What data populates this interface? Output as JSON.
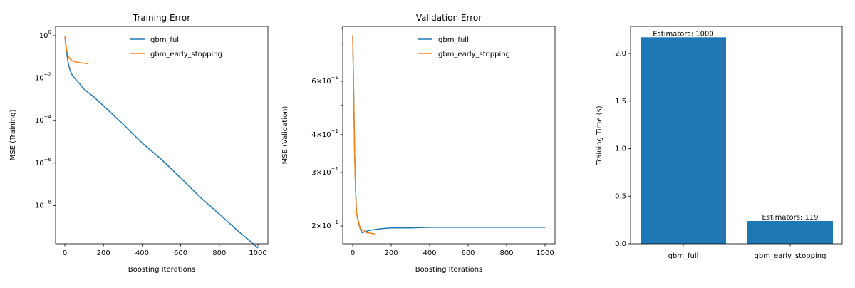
{
  "colors": {
    "blue": "#1f77b4",
    "orange": "#ff7f0e",
    "axis": "#000000",
    "legend_border": "#cccccc"
  },
  "chart_data": [
    {
      "type": "line",
      "title": "Training Error",
      "xlabel": "Boosting Iterations",
      "ylabel": "MSE (Training)",
      "yscale": "log",
      "xlim": [
        -50,
        1050
      ],
      "ylim": [
        2.5e-10,
        2.0
      ],
      "xticks": [
        "0",
        "200",
        "400",
        "600",
        "800",
        "1000"
      ],
      "yticks": [
        "10^0",
        "10^-2",
        "10^-4",
        "10^-6",
        "10^-8"
      ],
      "grid": false,
      "legend_position": "upper right",
      "series": [
        {
          "name": "gbm_full",
          "x": [
            0,
            5,
            10,
            15,
            20,
            30,
            40,
            60,
            80,
            100,
            150,
            200,
            300,
            400,
            500,
            600,
            700,
            800,
            900,
            950,
            1000
          ],
          "y": [
            0.9,
            0.35,
            0.15,
            0.07,
            0.04,
            0.02,
            0.013,
            0.008,
            0.005,
            0.003,
            0.0013,
            0.0005,
            7e-05,
            9e-06,
            1.5e-06,
            2e-07,
            2.5e-08,
            4e-09,
            6e-10,
            2.5e-10,
            1e-10
          ]
        },
        {
          "name": "gbm_early_stopping",
          "x": [
            0,
            5,
            10,
            15,
            20,
            30,
            40,
            60,
            80,
            100,
            119
          ],
          "y": [
            0.9,
            0.4,
            0.2,
            0.13,
            0.1,
            0.075,
            0.065,
            0.057,
            0.053,
            0.05,
            0.048
          ]
        }
      ]
    },
    {
      "type": "line",
      "title": "Validation Error",
      "xlabel": "Boosting Iterations",
      "ylabel": "MSE (Validation)",
      "yscale": "log",
      "xlim": [
        -50,
        1050
      ],
      "yticks": [
        "2×10^-1",
        "3×10^-1",
        "4×10^-1",
        "6×10^-1"
      ],
      "xticks": [
        "0",
        "200",
        "400",
        "600",
        "800",
        "1000"
      ],
      "grid": false,
      "legend_position": "upper right",
      "series": [
        {
          "name": "gbm_full",
          "x": [
            0,
            5,
            10,
            15,
            20,
            30,
            40,
            50,
            60,
            80,
            100,
            150,
            200,
            300,
            400,
            500,
            600,
            800,
            1000
          ],
          "y": [
            0.85,
            0.55,
            0.35,
            0.26,
            0.22,
            0.205,
            0.195,
            0.19,
            0.191,
            0.193,
            0.194,
            0.196,
            0.197,
            0.197,
            0.198,
            0.198,
            0.198,
            0.198,
            0.198
          ]
        },
        {
          "name": "gbm_early_stopping",
          "x": [
            0,
            5,
            10,
            15,
            20,
            30,
            40,
            50,
            60,
            70,
            80,
            100,
            119
          ],
          "y": [
            0.85,
            0.55,
            0.35,
            0.26,
            0.22,
            0.207,
            0.196,
            0.194,
            0.193,
            0.19,
            0.19,
            0.189,
            0.188
          ]
        }
      ]
    },
    {
      "type": "bar",
      "title": "",
      "xlabel": "",
      "ylabel": "Training Time (s)",
      "categories": [
        "gbm_full",
        "gbm_early_stopping"
      ],
      "values": [
        2.17,
        0.24
      ],
      "annotations": [
        "Estimators: 1000",
        "Estimators: 119"
      ],
      "ylim": [
        0,
        2.28
      ],
      "yticks": [
        "0.0",
        "0.5",
        "1.0",
        "1.5",
        "2.0"
      ],
      "grid": false
    }
  ]
}
